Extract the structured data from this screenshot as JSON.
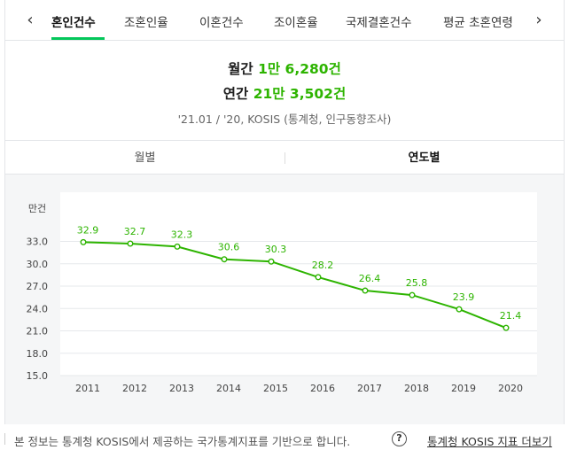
{
  "tabs": [
    {
      "label": "혼인건수",
      "active": true
    },
    {
      "label": "조혼인율",
      "active": false
    },
    {
      "label": "이혼건수",
      "active": false
    },
    {
      "label": "조이혼율",
      "active": false
    },
    {
      "label": "국제결혼건수",
      "active": false
    },
    {
      "label": "평균 초혼연령",
      "active": false
    }
  ],
  "nav": {
    "prev_icon": "chevron-left-icon",
    "next_icon": "chevron-right-icon"
  },
  "summary": {
    "monthly_label": "월간",
    "monthly_value": "1만 6,280건",
    "annual_label": "연간",
    "annual_value": "21만 3,502건",
    "source": "'21.01 / '20, KOSIS (통계청, 인구동향조사)"
  },
  "toggle": {
    "monthly": "월별",
    "yearly": "연도별",
    "selected": "yearly"
  },
  "chart_data": {
    "type": "line",
    "ylabel": "만건",
    "x": [
      "2011",
      "2012",
      "2013",
      "2014",
      "2015",
      "2016",
      "2017",
      "2018",
      "2019",
      "2020"
    ],
    "values": [
      32.9,
      32.7,
      32.3,
      30.6,
      30.3,
      28.2,
      26.4,
      25.8,
      23.9,
      21.4
    ],
    "data_labels": [
      "32.9",
      "32.7",
      "32.3",
      "30.6",
      "30.3",
      "28.2",
      "26.4",
      "25.8",
      "23.9",
      "21.4"
    ],
    "yticks": [
      "33.0",
      "30.0",
      "27.0",
      "24.0",
      "21.0",
      "18.0",
      "15.0"
    ],
    "ylim": [
      15.0,
      33.0
    ],
    "grid": true,
    "line_color": "#2db400"
  },
  "footer": {
    "text": "본 정보는 통계청 KOSIS에서 제공하는 국가통계지표를 기반으로 합니다.",
    "help_icon_label": "?",
    "link": "통계청 KOSIS 지표 더보기"
  },
  "colors": {
    "accent": "#03c75a",
    "value_green": "#2db400"
  }
}
